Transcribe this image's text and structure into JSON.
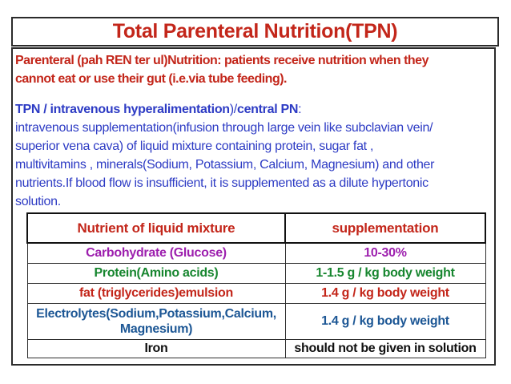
{
  "colors": {
    "red": "#c3261a",
    "blue": "#2d3bc4",
    "steel_blue": "#1d5795",
    "purple": "#9d1fae",
    "green": "#17862f",
    "black": "#0f0f0f"
  },
  "title": "Total Parenteral Nutrition(TPN)",
  "intro": {
    "lines": [
      "Parenteral (pah REN ter ul)Nutrition: patients receive nutrition when they",
      "cannot eat or use their gut (i.e.via tube feeding)."
    ]
  },
  "tpn": {
    "heading_segments": [
      {
        "text": "TPN / intravenous hyperalimentation",
        "bold": true
      },
      {
        "text": ")/",
        "bold": false
      },
      {
        "text": "central PN",
        "bold": true
      },
      {
        "text": ":",
        "bold": false
      }
    ],
    "lines": [
      "intravenous supplementation(infusion through large vein like subclavian vein/",
      "superior vena cava) of liquid mixture containing protein, sugar fat ,",
      "multivitamins , minerals(Sodium, Potassium, Calcium, Magnesium) and other",
      "nutrients.If blood flow is insufficient, it is supplemented as a dilute hypertonic",
      "solution."
    ]
  },
  "table": {
    "headers": [
      "Nutrient of liquid mixture",
      "supplementation"
    ],
    "rows": [
      {
        "nutrient": "Carbohydrate (Glucose)",
        "supplementation": "10-30%",
        "color": "#9d1fae"
      },
      {
        "nutrient": "Protein(Amino acids)",
        "supplementation": "1-1.5 g / kg body weight",
        "color": "#17862f"
      },
      {
        "nutrient": "fat (triglycerides)emulsion",
        "supplementation": "1.4 g / kg body weight",
        "color": "#c3261a"
      },
      {
        "nutrient": "Electrolytes(Sodium,Potassium,Calcium, Magnesium)",
        "nutrient_lines": [
          "Electrolytes(Sodium,Potassium,Calcium,",
          "Magnesium)"
        ],
        "supplementation": "1.4 g / kg body weight",
        "color": "#1d5795"
      },
      {
        "nutrient": "Iron",
        "supplementation": "should not be given in solution",
        "color": "#0f0f0f"
      }
    ]
  }
}
